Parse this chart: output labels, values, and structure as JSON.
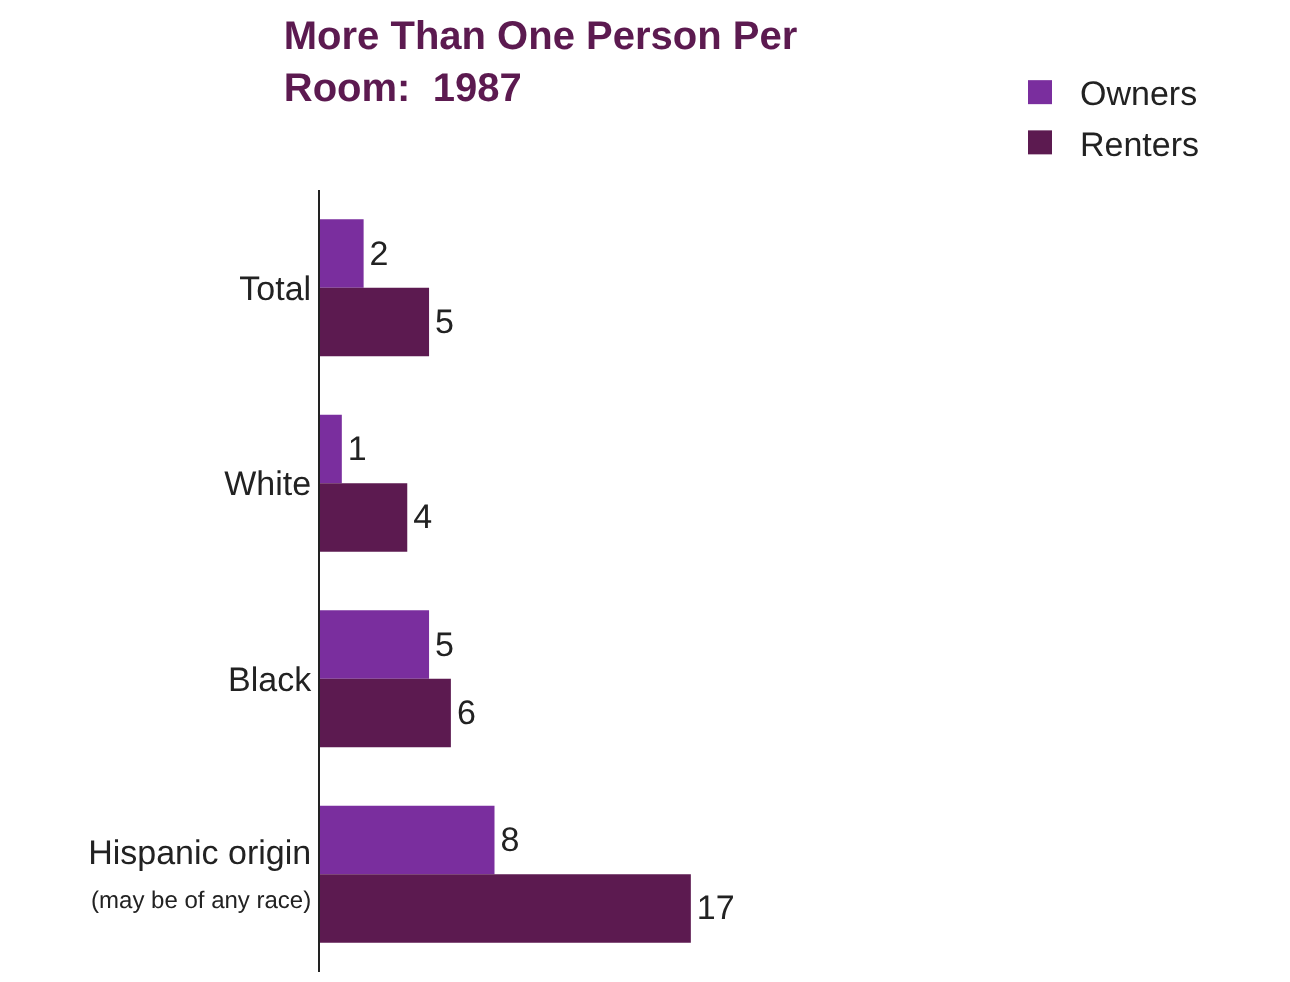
{
  "chart_data": {
    "type": "bar",
    "orientation": "horizontal",
    "title": "More Than One Person Per\nRoom:  1987",
    "categories": [
      "Total",
      "White",
      "Black",
      "Hispanic origin\n(may be of any race)"
    ],
    "series": [
      {
        "name": "Owners",
        "color": "#7a2e9e",
        "values": [
          2,
          1,
          5,
          8
        ]
      },
      {
        "name": "Renters",
        "color": "#5c1a50",
        "values": [
          5,
          4,
          6,
          17
        ]
      }
    ],
    "data_labels": true,
    "legend": "top right"
  }
}
